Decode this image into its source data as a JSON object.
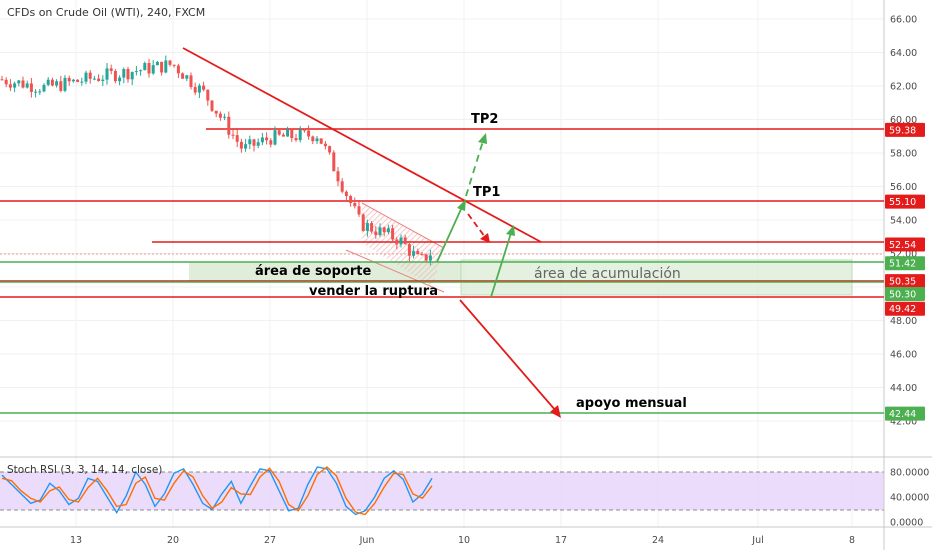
{
  "chart_data": [
    {
      "type": "candlestick",
      "title": "CFDs on Crude Oil (WTI), 240, FXCM",
      "y_axis_ticks": [
        "66.00",
        "64.00",
        "62.00",
        "60.00",
        "58.00",
        "56.00",
        "54.00",
        "52.00",
        "50.00",
        "48.00",
        "46.00",
        "44.00",
        "42.00"
      ],
      "x_axis_ticks": [
        "13",
        "20",
        "27",
        "Jun",
        "10",
        "17",
        "24",
        "Jul",
        "8"
      ],
      "ylim": [
        41,
        67
      ],
      "price_labels": [
        {
          "value": 59.38,
          "text": "59.38",
          "color": "#e31b1b"
        },
        {
          "value": 55.1,
          "text": "55.10",
          "color": "#e31b1b"
        },
        {
          "value": 52.54,
          "text": "52.54",
          "color": "#e31b1b"
        },
        {
          "value": 51.42,
          "text": "51.42",
          "color": "#4caf50"
        },
        {
          "value": 50.35,
          "text": "50.35",
          "color": "#e31b1b"
        },
        {
          "value": 50.3,
          "text": "50.30",
          "color": "#4caf50"
        },
        {
          "value": 49.42,
          "text": "49.42",
          "color": "#e31b1b"
        },
        {
          "value": 42.44,
          "text": "42.44",
          "color": "#4caf50"
        }
      ],
      "annotations": [
        {
          "text": "TP2",
          "x": "Jun 11",
          "y": 60.0
        },
        {
          "text": "TP1",
          "x": "Jun 11",
          "y": 55.6
        },
        {
          "text": "área de soporte",
          "x": "May 24",
          "y": 50.95
        },
        {
          "text": "área de acumulación",
          "x": "Jun 16",
          "y": 50.85
        },
        {
          "text": "vender la ruptura",
          "x": "Jun 2",
          "y": 49.8
        },
        {
          "text": "apoyo mensual",
          "x": "Jun 21",
          "y": 43.1
        }
      ],
      "series": [
        {
          "name": "WTI",
          "key_points": [
            {
              "x": "May 8",
              "close": 62.4
            },
            {
              "x": "May 13",
              "close": 61.9
            },
            {
              "x": "May 16",
              "close": 62.6
            },
            {
              "x": "May 20",
              "close": 63.3
            },
            {
              "x": "May 23",
              "close": 61.5
            },
            {
              "x": "May 24",
              "close": 58.2
            },
            {
              "x": "May 27",
              "close": 58.9
            },
            {
              "x": "May 29",
              "close": 59.1
            },
            {
              "x": "May 30",
              "close": 56.4
            },
            {
              "x": "May 31",
              "close": 53.8
            },
            {
              "x": "Jun 4",
              "close": 52.8
            },
            {
              "x": "Jun 6",
              "close": 51.5
            },
            {
              "x": "Jun 7",
              "close": 52.1
            }
          ]
        }
      ],
      "colors": {
        "up": "#26a69a",
        "down": "#ef5350",
        "resistance": "#e31b1b",
        "support": "#4caf50"
      }
    },
    {
      "type": "line",
      "title": "Stoch RSI (3, 3, 14, 14, close)",
      "y_axis_ticks": [
        "80.0000",
        "40.0000",
        "0.0000"
      ],
      "ylim": [
        -5,
        100
      ],
      "bands": [
        20,
        80
      ],
      "series": [
        {
          "color": "#2196f3",
          "values": [
            75,
            60,
            45,
            30,
            35,
            62,
            50,
            28,
            38,
            70,
            65,
            40,
            15,
            42,
            80,
            60,
            25,
            45,
            78,
            85,
            60,
            30,
            20,
            45,
            65,
            30,
            58,
            85,
            82,
            50,
            18,
            22,
            60,
            88,
            85,
            62,
            25,
            12,
            18,
            40,
            70,
            82,
            68,
            32,
            45,
            70
          ]
        },
        {
          "color": "#ff6d00",
          "values": [
            70,
            66,
            50,
            38,
            32,
            50,
            56,
            36,
            32,
            55,
            70,
            50,
            25,
            28,
            62,
            72,
            38,
            35,
            62,
            82,
            72,
            42,
            22,
            32,
            55,
            45,
            44,
            72,
            86,
            65,
            28,
            18,
            42,
            76,
            88,
            74,
            38,
            16,
            12,
            30,
            56,
            78,
            76,
            45,
            38,
            58
          ]
        }
      ]
    }
  ]
}
